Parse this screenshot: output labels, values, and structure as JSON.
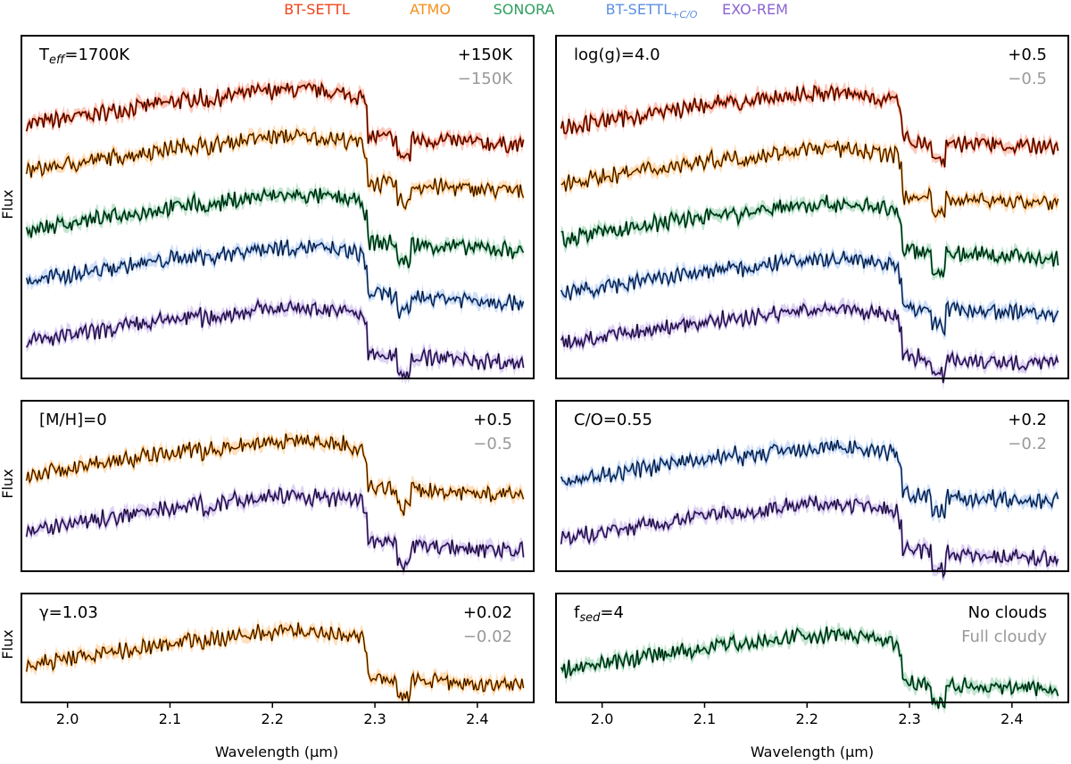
{
  "legend": [
    {
      "name": "BT-SETTL",
      "sub": "",
      "color": "#f0441a"
    },
    {
      "name": "ATMO",
      "sub": "",
      "color": "#f7901e"
    },
    {
      "name": "SONORA",
      "sub": "",
      "color": "#2e9e5e"
    },
    {
      "name": "BT-SETTL",
      "sub": "+C/O",
      "color": "#5b8fe3"
    },
    {
      "name": "EXO-REM",
      "sub": "",
      "color": "#8a63d2"
    }
  ],
  "axes": {
    "ylabel": "Flux",
    "xlabel": "Wavelength (µm)",
    "xticks": [
      "2.0",
      "2.1",
      "2.2",
      "2.3",
      "2.4"
    ]
  },
  "chart_data": [
    {
      "type": "line",
      "panel": "teff",
      "param": {
        "main": "T",
        "sub": "eff",
        "rest": "=1700K"
      },
      "plus_label": "+150K",
      "minus_label": "−150K",
      "xlim": [
        1.955,
        2.455
      ],
      "x_range": [
        1.96,
        2.445
      ],
      "series": [
        "BT-SETTL",
        "ATMO",
        "SONORA",
        "BT-SETTL+C/O",
        "EXO-REM"
      ]
    },
    {
      "type": "line",
      "panel": "logg",
      "param": {
        "main": "log(g)=4.0",
        "sub": "",
        "rest": ""
      },
      "plus_label": "+0.5",
      "minus_label": "−0.5",
      "xlim": [
        1.955,
        2.455
      ],
      "x_range": [
        1.96,
        2.445
      ],
      "series": [
        "BT-SETTL",
        "ATMO",
        "SONORA",
        "BT-SETTL+C/O",
        "EXO-REM"
      ]
    },
    {
      "type": "line",
      "panel": "mh",
      "param": {
        "main": "[M/H]=0",
        "sub": "",
        "rest": ""
      },
      "plus_label": "+0.5",
      "minus_label": "−0.5",
      "xlim": [
        1.955,
        2.455
      ],
      "x_range": [
        1.96,
        2.445
      ],
      "series": [
        "ATMO",
        "EXO-REM"
      ]
    },
    {
      "type": "line",
      "panel": "co",
      "param": {
        "main": "C/O=0.55",
        "sub": "",
        "rest": ""
      },
      "plus_label": "+0.2",
      "minus_label": "−0.2",
      "xlim": [
        1.955,
        2.455
      ],
      "x_range": [
        1.96,
        2.445
      ],
      "series": [
        "BT-SETTL+C/O",
        "EXO-REM"
      ]
    },
    {
      "type": "line",
      "panel": "gamma",
      "param": {
        "main": "γ=1.03",
        "sub": "",
        "rest": ""
      },
      "plus_label": "+0.02",
      "minus_label": "−0.02",
      "xlim": [
        1.955,
        2.455
      ],
      "x_range": [
        1.96,
        2.445
      ],
      "series": [
        "ATMO"
      ]
    },
    {
      "type": "line",
      "panel": "fsed",
      "param": {
        "main": "f",
        "sub": "sed",
        "rest": "=4"
      },
      "plus_label": "No clouds",
      "minus_label": "Full cloudy",
      "xlim": [
        1.955,
        2.455
      ],
      "x_range": [
        1.96,
        2.445
      ],
      "series": [
        "SONORA"
      ]
    }
  ]
}
